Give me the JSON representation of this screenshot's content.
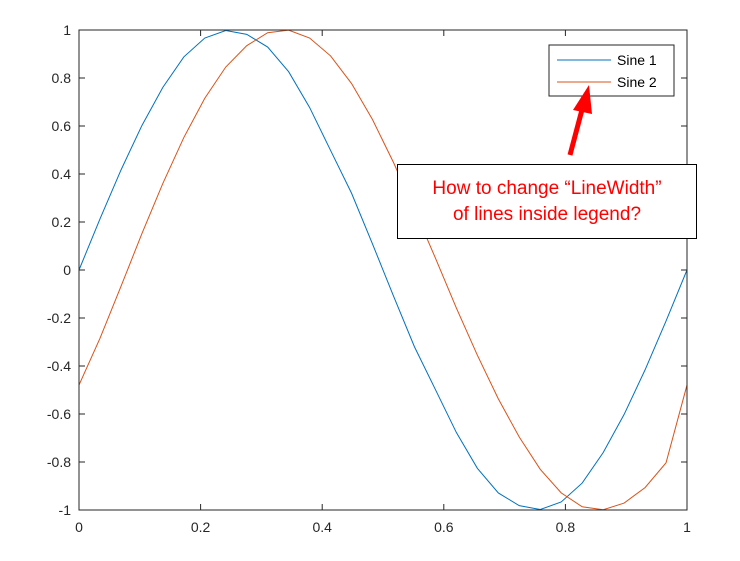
{
  "chart_data": {
    "type": "line",
    "xlim": [
      0,
      1
    ],
    "ylim": [
      -1,
      1
    ],
    "xticks": [
      "0",
      "0.2",
      "0.4",
      "0.6",
      "0.8",
      "1"
    ],
    "yticks": [
      "-1",
      "-0.8",
      "-0.6",
      "-0.4",
      "-0.2",
      "0",
      "0.2",
      "0.4",
      "0.6",
      "0.8",
      "1"
    ],
    "grid": false,
    "legend_placement": "top-right",
    "series": [
      {
        "name": "Sine 1",
        "color": "#0072BD",
        "x": [
          0,
          0.0345,
          0.069,
          0.1034,
          0.1379,
          0.1724,
          0.2069,
          0.2414,
          0.2759,
          0.3103,
          0.3448,
          0.3793,
          0.4138,
          0.4483,
          0.4828,
          0.5172,
          0.5517,
          0.5862,
          0.6207,
          0.6552,
          0.6897,
          0.7241,
          0.7586,
          0.7931,
          0.8276,
          0.8621,
          0.8966,
          0.931,
          0.9655,
          1
        ],
        "y": [
          0,
          0.2127,
          0.4162,
          0.6017,
          0.7611,
          0.8878,
          0.9666,
          0.998,
          0.9818,
          0.9289,
          0.8263,
          0.6773,
          0.4981,
          0.3198,
          0.1081,
          -0.1081,
          -0.3198,
          -0.4981,
          -0.6773,
          -0.8263,
          -0.9289,
          -0.9818,
          -0.998,
          -0.9666,
          -0.8878,
          -0.7611,
          -0.6017,
          -0.4162,
          -0.2127,
          0
        ]
      },
      {
        "name": "Sine 2",
        "color": "#D95319",
        "x": [
          0,
          0.0345,
          0.069,
          0.1034,
          0.1379,
          0.1724,
          0.2069,
          0.2414,
          0.2759,
          0.3103,
          0.3448,
          0.3793,
          0.4138,
          0.4483,
          0.4828,
          0.5172,
          0.5517,
          0.5862,
          0.6207,
          0.6552,
          0.6897,
          0.7241,
          0.7586,
          0.7931,
          0.8276,
          0.8621,
          0.8966,
          0.931,
          0.9655,
          1
        ],
        "y": [
          -0.4794,
          -0.2846,
          -0.0687,
          0.1512,
          0.3607,
          0.5518,
          0.7157,
          0.8457,
          0.9347,
          0.9887,
          0.9995,
          0.9665,
          0.892,
          0.777,
          0.6264,
          0.4484,
          0.2527,
          0.0497,
          -0.1584,
          -0.3551,
          -0.537,
          -0.6958,
          -0.8303,
          -0.9286,
          -0.9865,
          -0.999,
          -0.971,
          -0.9068,
          -0.8035,
          -0.4794
        ]
      }
    ]
  },
  "annotation": {
    "line1": "How to change “LineWidth”",
    "line2": "of lines inside legend?"
  }
}
